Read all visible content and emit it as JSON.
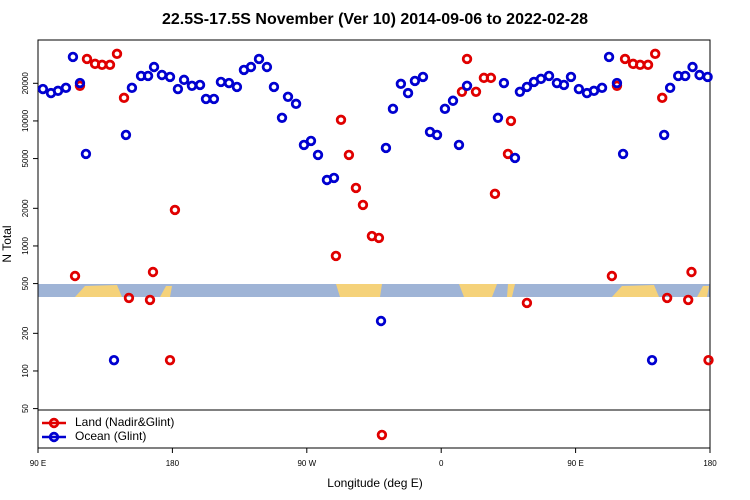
{
  "chart_data": {
    "type": "scatter",
    "title": "22.5S-17.5S November (Ver 10)   2014-09-06 to 2022-02-28",
    "xlabel": "Longitude (deg E)",
    "ylabel": "N Total",
    "log_y": true,
    "legend": "bottomleft",
    "xlim": [
      90,
      540
    ],
    "ylim": [
      24.2,
      44400
    ],
    "xticks": [
      {
        "value": 90,
        "label": "90 E"
      },
      {
        "value": 180,
        "label": "180"
      },
      {
        "value": 270,
        "label": "90 W"
      },
      {
        "value": 360,
        "label": "0"
      },
      {
        "value": 450,
        "label": "90 E"
      },
      {
        "value": 540,
        "label": "180"
      }
    ],
    "yticks": [
      50,
      100,
      200,
      500,
      1000,
      2000,
      5000,
      10000,
      20000
    ],
    "series": [
      {
        "name": "Land (Nadir&Glint)",
        "color": "#e00000",
        "x": [
          114.8,
          118.1,
          122.8,
          128.2,
          132.9,
          138.2,
          142.9,
          147.6,
          150.9,
          165,
          167,
          178.4,
          181.7,
          289.5,
          292.9,
          298.2,
          302.9,
          307.6,
          313.6,
          318.3,
          320.3,
          373.9,
          377.3,
          383.3,
          388.6,
          393.3,
          396,
          404.7,
          406.7,
          417.4,
          474.3,
          477.7,
          483.1,
          488.5,
          493.2,
          498.5,
          503.3,
          508,
          511.3,
          525.4,
          527.6,
          539
        ],
        "values": [
          575,
          19100,
          31300,
          28600,
          28100,
          28100,
          34400,
          15300,
          384,
          370,
          619,
          122,
          1940,
          832,
          10200,
          5350,
          2910,
          2130,
          1200,
          1160,
          30.8,
          17100,
          31300,
          17100,
          22100,
          22100,
          2610,
          5450,
          10000,
          350,
          575,
          19100,
          31300,
          28600,
          28100,
          28100,
          34400,
          15300,
          384,
          370,
          619,
          122
        ]
      },
      {
        "name": "Ocean (Glint)",
        "color": "#0000d0",
        "x": [
          93.3,
          98.7,
          103.4,
          108.7,
          113.4,
          118.1,
          122.1,
          140.9,
          148.9,
          152.9,
          159,
          163.7,
          167.7,
          173,
          178.4,
          183.7,
          187.8,
          193.1,
          198.5,
          202.5,
          207.8,
          212.5,
          217.9,
          223.2,
          227.9,
          232.6,
          238,
          243.3,
          248,
          253.4,
          257.4,
          262.8,
          268.1,
          272.8,
          277.5,
          283.5,
          288.2,
          319.7,
          323,
          327.7,
          333,
          337.8,
          342.4,
          347.8,
          352.5,
          357.2,
          362.5,
          367.9,
          371.9,
          377.3,
          398,
          402,
          409.4,
          412.7,
          417.4,
          422.1,
          426.8,
          432.2,
          437.5,
          442.2,
          446.9,
          452.2,
          457.6,
          462.3,
          467.7,
          472.4,
          477.7,
          481.8,
          501.2,
          509.3,
          513.3,
          518.7,
          523.4,
          528.3,
          533,
          538.4
        ],
        "values": [
          18000,
          16700,
          17400,
          18400,
          32500,
          20100,
          5450,
          122,
          7730,
          18400,
          22900,
          22900,
          27000,
          23300,
          22500,
          18000,
          21300,
          19100,
          19400,
          15000,
          15000,
          20500,
          20100,
          18700,
          25600,
          27000,
          31300,
          27000,
          18700,
          10600,
          15600,
          13700,
          6430,
          6920,
          5350,
          3370,
          3500,
          251,
          6080,
          12500,
          19800,
          16700,
          20900,
          22500,
          8170,
          7730,
          12500,
          14500,
          6430,
          19100,
          10600,
          20100,
          5060,
          17100,
          18700,
          20500,
          21700,
          22900,
          20100,
          19400,
          22500,
          18000,
          16700,
          17400,
          18400,
          32500,
          20100,
          5450,
          122,
          7730,
          18400,
          22900,
          22900,
          27000,
          23300,
          22500
        ]
      }
    ]
  }
}
